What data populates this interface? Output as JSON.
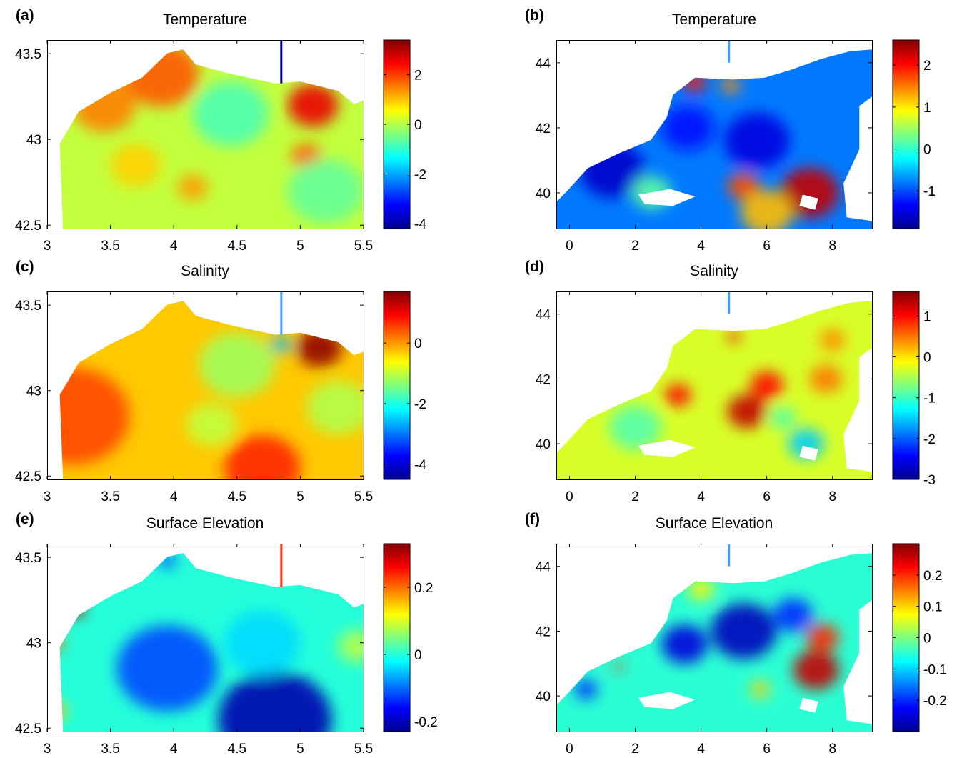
{
  "figure": {
    "colors": {
      "jet": [
        "#00008f",
        "#0000ff",
        "#007fff",
        "#00ffff",
        "#7fff7f",
        "#ffff00",
        "#ff7f00",
        "#ff0000",
        "#7f0000"
      ],
      "background": "#ffffff",
      "frame": "#000000"
    }
  },
  "chart_data": [
    {
      "type": "heatmap",
      "panel_label": "(a)",
      "title": "Temperature",
      "xlabel": "",
      "ylabel": "",
      "xlim": [
        3,
        5.5
      ],
      "ylim": [
        42.48,
        43.58
      ],
      "x_ticks": [
        "3",
        "3.5",
        "4",
        "4.5",
        "5",
        "5.5"
      ],
      "y_ticks": [
        "42.5",
        "43",
        "43.5"
      ],
      "colorbar": {
        "min": -4.2,
        "max": 3.4,
        "ticks": [
          "2",
          "0",
          "-2",
          "-4"
        ]
      },
      "base_value": 0.1,
      "features": [
        {
          "x": 3.9,
          "y": 43.38,
          "value": 1.8,
          "radius": 0.3
        },
        {
          "x": 3.45,
          "y": 43.2,
          "value": 1.5,
          "radius": 0.25
        },
        {
          "x": 5.1,
          "y": 43.2,
          "value": 2.6,
          "radius": 0.2
        },
        {
          "x": 4.45,
          "y": 43.15,
          "value": -0.8,
          "radius": 0.3
        },
        {
          "x": 5.05,
          "y": 42.9,
          "value": 1.8,
          "radius": 0.12
        },
        {
          "x": 4.15,
          "y": 42.72,
          "value": 1.3,
          "radius": 0.12
        },
        {
          "x": 5.2,
          "y": 42.7,
          "value": -0.6,
          "radius": 0.3
        },
        {
          "x": 3.7,
          "y": 42.85,
          "value": 0.9,
          "radius": 0.2
        }
      ]
    },
    {
      "type": "heatmap",
      "panel_label": "(b)",
      "title": "Temperature",
      "xlabel": "",
      "ylabel": "",
      "xlim": [
        -0.4,
        9.2
      ],
      "ylim": [
        38.9,
        44.7
      ],
      "x_ticks": [
        "0",
        "2",
        "4",
        "6",
        "8"
      ],
      "y_ticks": [
        "40",
        "42",
        "44"
      ],
      "colorbar": {
        "min": -1.9,
        "max": 2.6,
        "ticks": [
          "2",
          "1",
          "0",
          "-1"
        ]
      },
      "base_value": -0.8,
      "features": [
        {
          "x": 7.3,
          "y": 40.0,
          "value": 2.3,
          "radius": 0.9
        },
        {
          "x": 5.3,
          "y": 40.2,
          "value": 1.7,
          "radius": 0.5
        },
        {
          "x": 6.0,
          "y": 39.4,
          "value": 1.2,
          "radius": 0.8
        },
        {
          "x": 3.8,
          "y": 43.4,
          "value": 2.0,
          "radius": 0.35
        },
        {
          "x": 4.9,
          "y": 43.3,
          "value": 1.4,
          "radius": 0.3
        },
        {
          "x": 1.3,
          "y": 40.7,
          "value": -1.6,
          "radius": 1.0
        },
        {
          "x": 5.7,
          "y": 41.6,
          "value": -1.5,
          "radius": 1.0
        },
        {
          "x": 3.6,
          "y": 42.0,
          "value": -1.3,
          "radius": 0.8
        },
        {
          "x": 2.5,
          "y": 40.0,
          "value": 0.2,
          "radius": 0.6
        }
      ]
    },
    {
      "type": "heatmap",
      "panel_label": "(c)",
      "title": "Salinity",
      "xlabel": "",
      "ylabel": "",
      "xlim": [
        3,
        5.5
      ],
      "ylim": [
        42.48,
        43.58
      ],
      "x_ticks": [
        "3",
        "3.5",
        "4",
        "4.5",
        "5",
        "5.5"
      ],
      "y_ticks": [
        "42.5",
        "43",
        "43.5"
      ],
      "colorbar": {
        "min": -4.5,
        "max": 1.7,
        "ticks": [
          "0",
          "-2",
          "-4"
        ]
      },
      "base_value": -0.3,
      "features": [
        {
          "x": 5.15,
          "y": 43.25,
          "value": 1.6,
          "radius": 0.18
        },
        {
          "x": 4.85,
          "y": 43.27,
          "value": -2.6,
          "radius": 0.08
        },
        {
          "x": 3.2,
          "y": 42.85,
          "value": 0.5,
          "radius": 0.45
        },
        {
          "x": 4.7,
          "y": 42.55,
          "value": 0.7,
          "radius": 0.3
        },
        {
          "x": 4.5,
          "y": 43.15,
          "value": -1.2,
          "radius": 0.3
        },
        {
          "x": 4.3,
          "y": 42.8,
          "value": -1.0,
          "radius": 0.2
        },
        {
          "x": 5.3,
          "y": 42.9,
          "value": -1.1,
          "radius": 0.25
        }
      ]
    },
    {
      "type": "heatmap",
      "panel_label": "(d)",
      "title": "Salinity",
      "xlabel": "",
      "ylabel": "",
      "xlim": [
        -0.4,
        9.2
      ],
      "ylim": [
        38.9,
        44.7
      ],
      "x_ticks": [
        "0",
        "2",
        "4",
        "6",
        "8"
      ],
      "y_ticks": [
        "40",
        "42",
        "44"
      ],
      "colorbar": {
        "min": -3.0,
        "max": 1.6,
        "ticks": [
          "1",
          "0",
          "-1",
          "-2",
          "-3"
        ]
      },
      "base_value": -0.3,
      "features": [
        {
          "x": 5.4,
          "y": 41.0,
          "value": 1.3,
          "radius": 0.6
        },
        {
          "x": 6.0,
          "y": 41.8,
          "value": 1.0,
          "radius": 0.5
        },
        {
          "x": 3.3,
          "y": 41.5,
          "value": 1.0,
          "radius": 0.4
        },
        {
          "x": 5.0,
          "y": 43.3,
          "value": 1.1,
          "radius": 0.2
        },
        {
          "x": 7.2,
          "y": 40.0,
          "value": -1.5,
          "radius": 0.55
        },
        {
          "x": 6.5,
          "y": 40.8,
          "value": -0.9,
          "radius": 0.4
        },
        {
          "x": 2.0,
          "y": 40.5,
          "value": -0.9,
          "radius": 0.8
        },
        {
          "x": 7.8,
          "y": 42.0,
          "value": 0.5,
          "radius": 0.5
        },
        {
          "x": 8.0,
          "y": 43.2,
          "value": 0.4,
          "radius": 0.4
        }
      ]
    },
    {
      "type": "heatmap",
      "panel_label": "(e)",
      "title": "Surface Elevation",
      "xlabel": "",
      "ylabel": "",
      "xlim": [
        3,
        5.5
      ],
      "ylim": [
        42.48,
        43.58
      ],
      "x_ticks": [
        "3",
        "3.5",
        "4",
        "4.5",
        "5",
        "5.5"
      ],
      "y_ticks": [
        "42.5",
        "43",
        "43.5"
      ],
      "colorbar": {
        "min": -0.23,
        "max": 0.33,
        "ticks": [
          "0.2",
          "0",
          "-0.2"
        ]
      },
      "base_value": 0.0,
      "features": [
        {
          "x": 3.22,
          "y": 43.2,
          "value": 0.3,
          "radius": 0.08
        },
        {
          "x": 3.05,
          "y": 43.0,
          "value": 0.2,
          "radius": 0.08
        },
        {
          "x": 3.05,
          "y": 42.6,
          "value": 0.15,
          "radius": 0.1
        },
        {
          "x": 4.8,
          "y": 42.55,
          "value": -0.21,
          "radius": 0.45
        },
        {
          "x": 3.95,
          "y": 42.85,
          "value": -0.12,
          "radius": 0.4
        },
        {
          "x": 5.45,
          "y": 42.98,
          "value": 0.08,
          "radius": 0.15
        },
        {
          "x": 3.95,
          "y": 43.48,
          "value": -0.12,
          "radius": 0.07
        },
        {
          "x": 4.7,
          "y": 43.0,
          "value": -0.04,
          "radius": 0.3
        }
      ]
    },
    {
      "type": "heatmap",
      "panel_label": "(f)",
      "title": "Surface Elevation",
      "xlabel": "",
      "ylabel": "",
      "xlim": [
        -0.4,
        9.2
      ],
      "ylim": [
        38.9,
        44.7
      ],
      "x_ticks": [
        "0",
        "2",
        "4",
        "6",
        "8"
      ],
      "y_ticks": [
        "40",
        "42",
        "44"
      ],
      "colorbar": {
        "min": -0.3,
        "max": 0.3,
        "ticks": [
          "0.2",
          "0.1",
          "0",
          "-0.1",
          "-0.2"
        ]
      },
      "base_value": -0.05,
      "features": [
        {
          "x": 7.5,
          "y": 40.8,
          "value": 0.26,
          "radius": 0.7
        },
        {
          "x": 7.7,
          "y": 41.8,
          "value": 0.2,
          "radius": 0.5
        },
        {
          "x": 5.3,
          "y": 42.0,
          "value": -0.27,
          "radius": 1.0
        },
        {
          "x": 3.5,
          "y": 41.6,
          "value": -0.25,
          "radius": 0.7
        },
        {
          "x": 6.8,
          "y": 42.5,
          "value": -0.2,
          "radius": 0.6
        },
        {
          "x": 0.5,
          "y": 40.2,
          "value": -0.2,
          "radius": 0.35
        },
        {
          "x": 4.0,
          "y": 43.3,
          "value": 0.08,
          "radius": 0.4
        },
        {
          "x": 1.5,
          "y": 40.9,
          "value": 0.2,
          "radius": 0.15
        },
        {
          "x": 5.8,
          "y": 40.2,
          "value": 0.1,
          "radius": 0.3
        }
      ]
    }
  ]
}
